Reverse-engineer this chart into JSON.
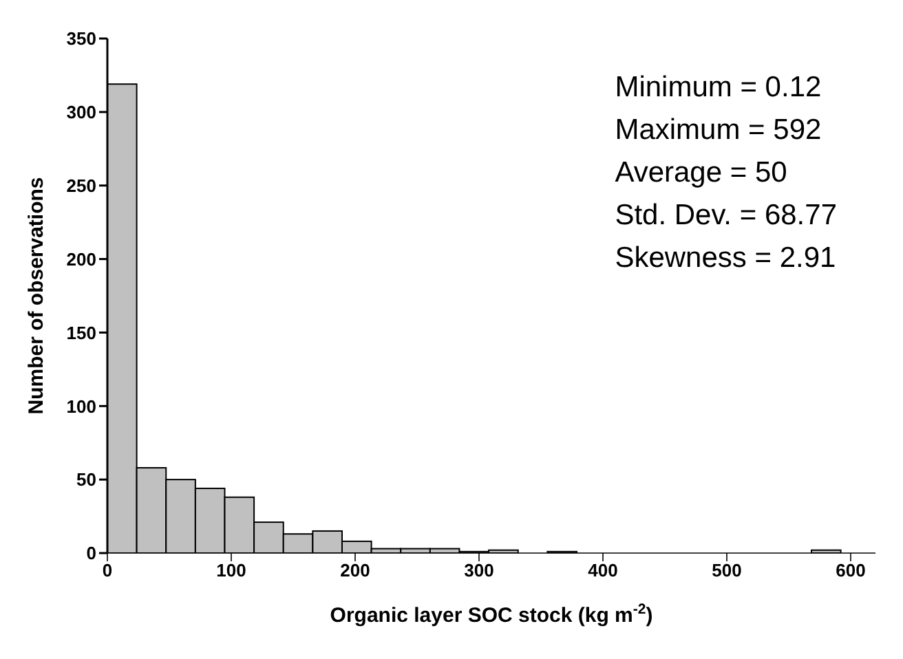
{
  "chart_data": {
    "type": "histogram",
    "xlabel": "Organic layer SOC stock (kg m$^{-2}$)",
    "ylabel": "Number of observations",
    "bins": [
      0,
      23.68,
      47.36,
      71.04,
      94.72,
      118.4,
      142.08,
      165.76,
      189.44,
      213.12,
      236.8,
      260.48,
      284.16,
      307.84,
      331.52,
      355.2,
      378.88,
      402.56,
      426.24,
      449.92,
      473.6,
      497.28,
      520.96,
      544.64,
      568.32,
      592
    ],
    "values": [
      319,
      58,
      50,
      44,
      38,
      21,
      13,
      15,
      8,
      3,
      3,
      3,
      1,
      2,
      0,
      1,
      0,
      0,
      0,
      0,
      0,
      0,
      0,
      0,
      2
    ],
    "color": "#c0c0c0",
    "xlim": [
      0,
      620
    ],
    "ylim": [
      0,
      350
    ],
    "xticks": [
      0,
      100,
      200,
      300,
      400,
      500,
      600
    ],
    "yticks": [
      0,
      50,
      100,
      150,
      200,
      250,
      300,
      350
    ],
    "grid": false,
    "annotations": [
      "Minimum = 0.12",
      "Maximum = 592",
      "Average = 50",
      "Std. Dev. = 68.77",
      "Skewness = 2.91"
    ]
  }
}
